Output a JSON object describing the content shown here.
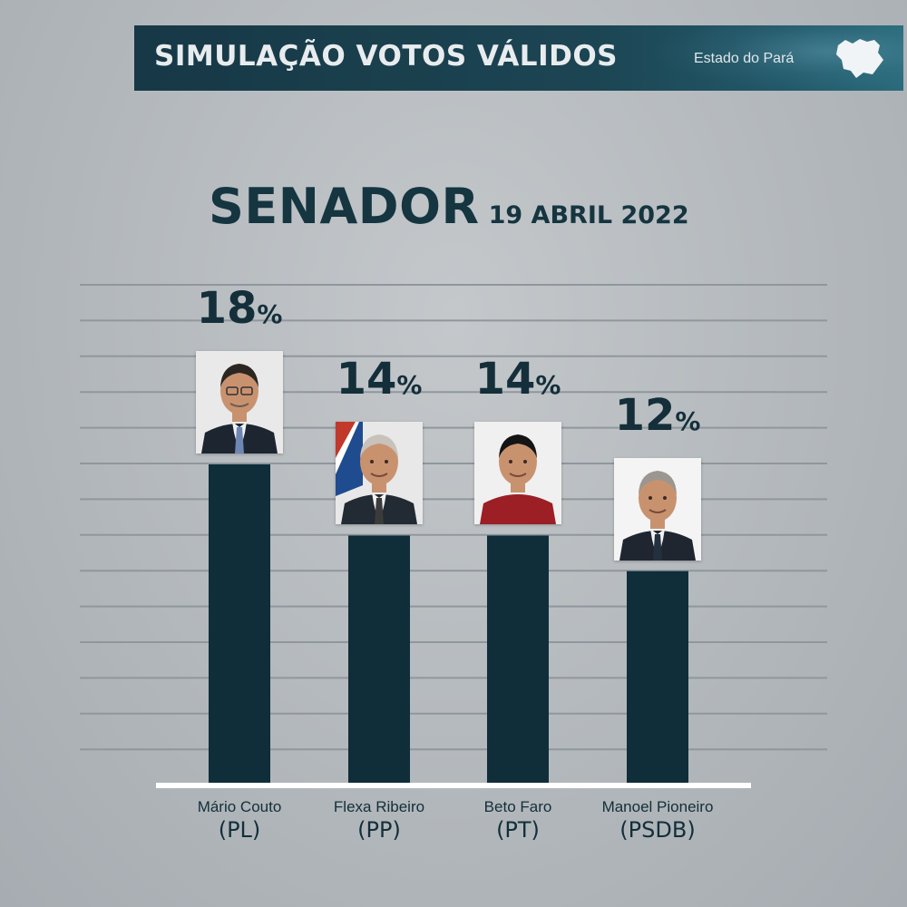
{
  "header": {
    "title": "SIMULAÇÃO VOTOS VÁLIDOS",
    "region": "Estado do Pará"
  },
  "chart_data": {
    "type": "bar",
    "title": "SENADOR",
    "subtitle": "19 ABRIL 2022",
    "categories": [
      "Mário Couto",
      "Flexa Ribeiro",
      "Beto Faro",
      "Manoel Pioneiro"
    ],
    "parties": [
      "(PL)",
      "(PP)",
      "(PT)",
      "(PSDB)"
    ],
    "values": [
      18,
      14,
      14,
      12
    ],
    "value_suffix": "%",
    "ylim": [
      0,
      18
    ],
    "grid": true,
    "bar_color": "#0f2e3a",
    "photo_bg": [
      "#e9e9e9",
      "#e8e8e8",
      "#f0f0f0",
      "#f4f4f4"
    ],
    "shirt_color": [
      "#1d2630",
      "#222a33",
      "#9b1f24",
      "#1f2630"
    ],
    "tie_color": [
      "#6d86b4",
      "#3b3b3b",
      "",
      "#22303f"
    ]
  }
}
